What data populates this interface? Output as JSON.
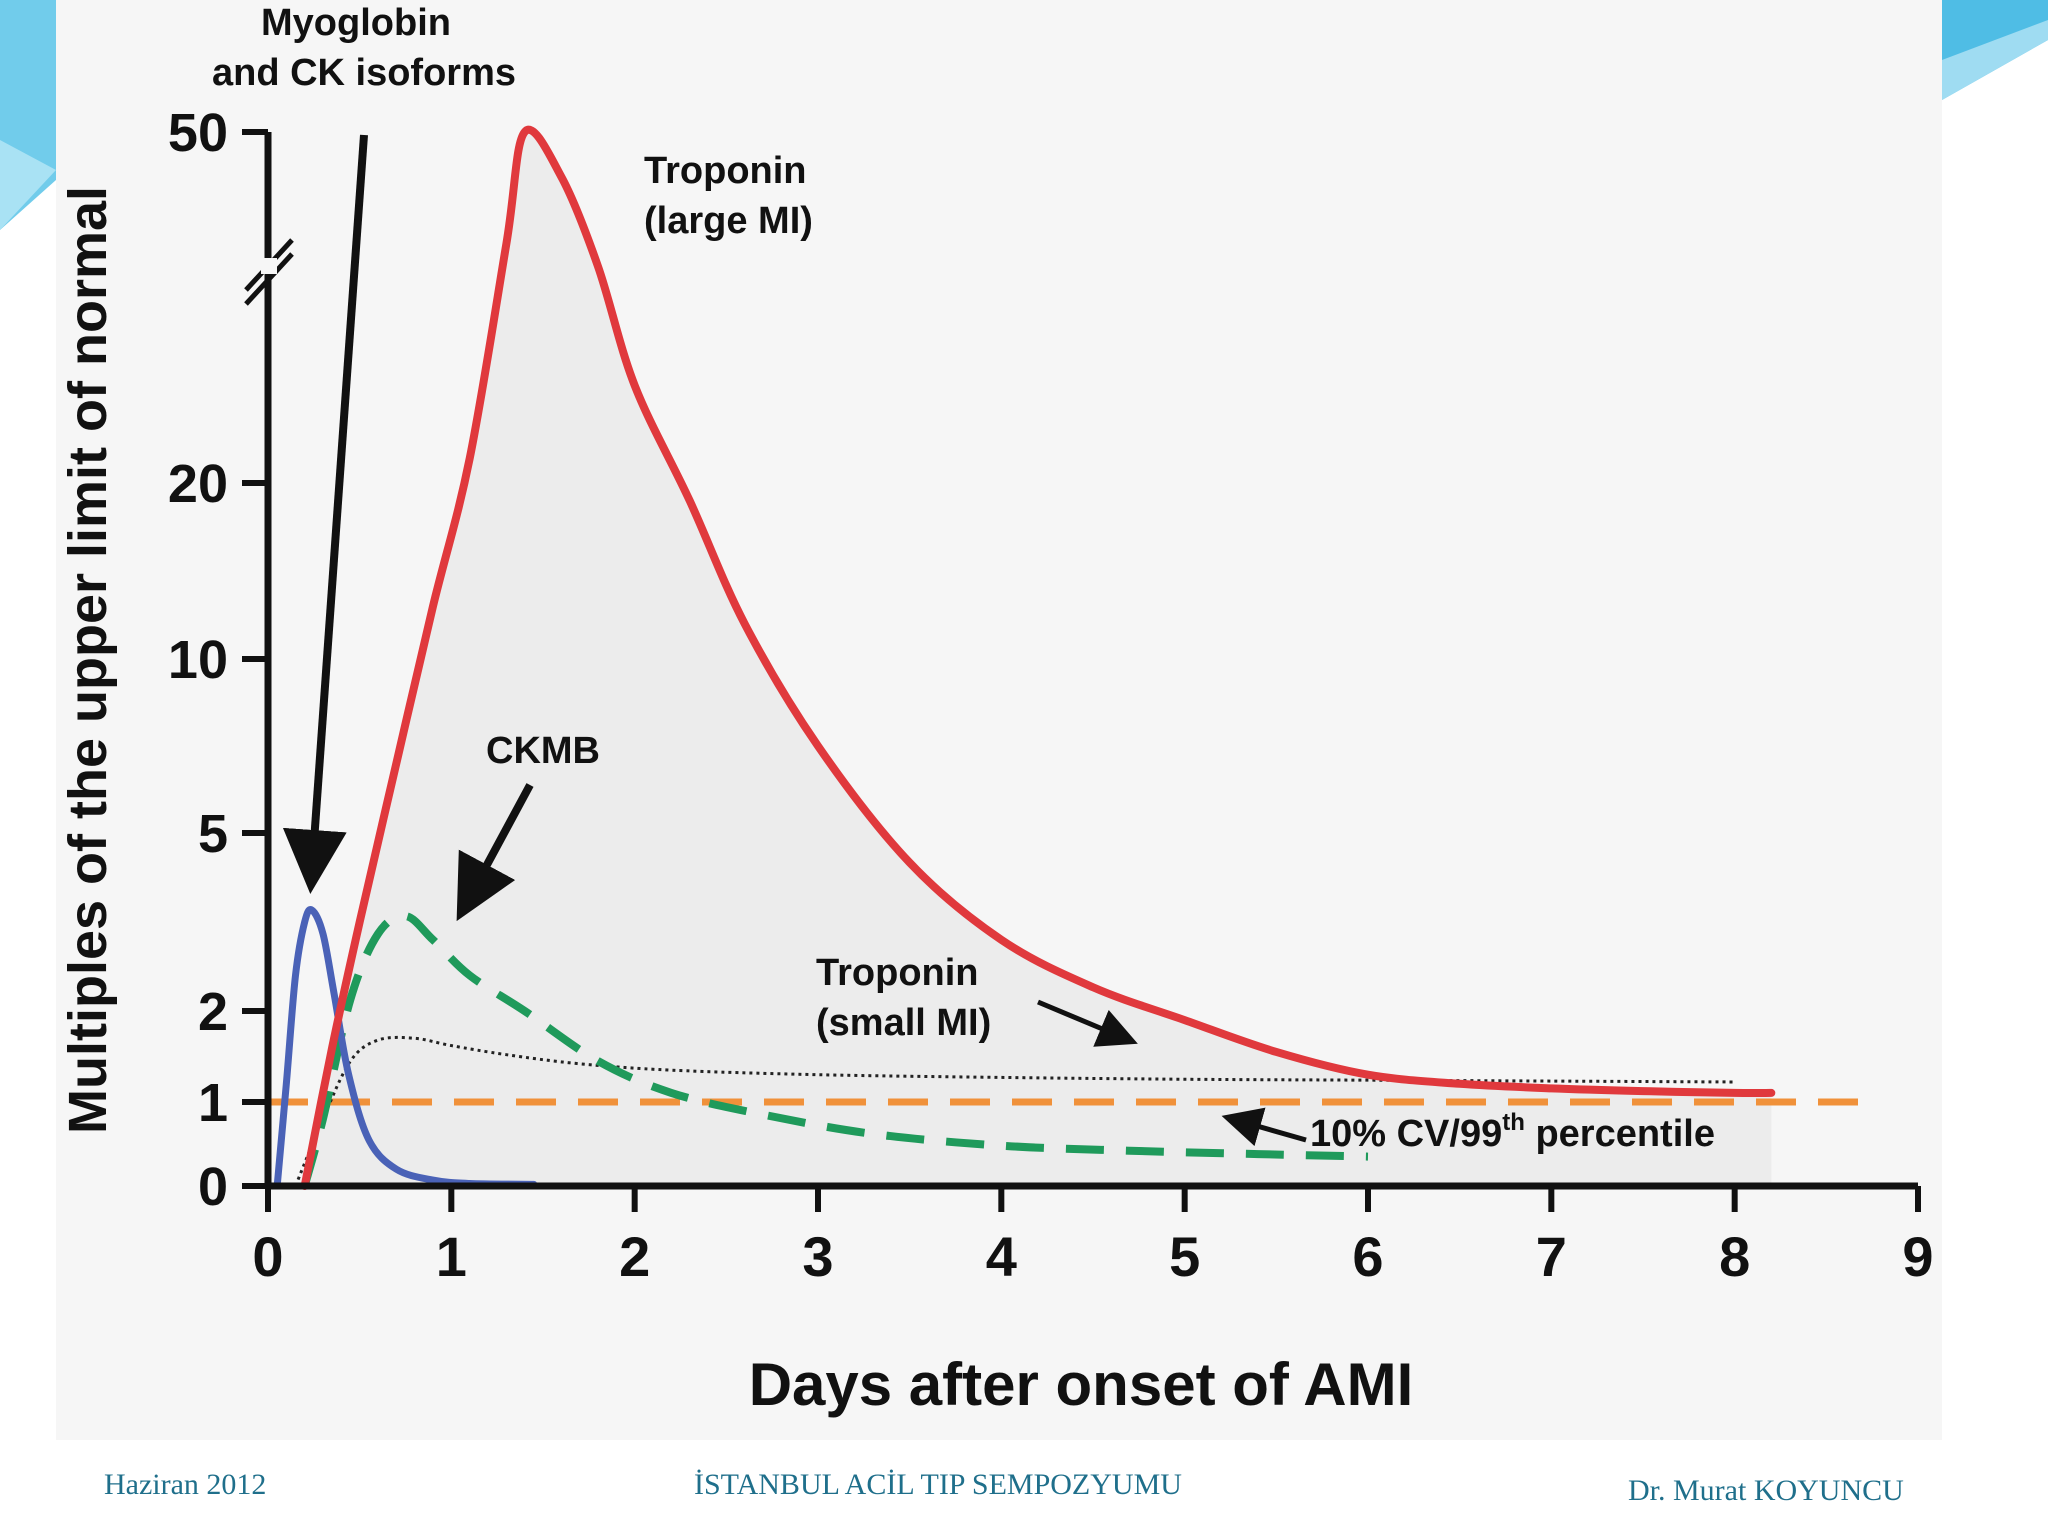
{
  "footer": {
    "left": "Haziran 2012",
    "center": "İSTANBUL ACİL TIP SEMPOZYUMU",
    "right": "Dr. Murat KOYUNCU"
  },
  "colors": {
    "troponin_large": "#e0393d",
    "ckmb": "#1f9a5b",
    "myoglobin": "#4a62b7",
    "troponin_small": "#222222",
    "threshold": "#f0913a",
    "axis": "#111111",
    "footer": "#1f6f8b",
    "accent": "#3fb7e0"
  },
  "chart_data": {
    "type": "line",
    "title": "",
    "xlabel": "Days after onset of AMI",
    "ylabel": "Multiples of the upper limit of normal",
    "xlim": [
      0,
      9
    ],
    "x_ticks": [
      "0",
      "1",
      "2",
      "3",
      "4",
      "5",
      "6",
      "7",
      "8",
      "9"
    ],
    "y_ticks": [
      "0",
      "1",
      "2",
      "5",
      "10",
      "20",
      "50"
    ],
    "y_scale": "broken log-like (axis break between 20 and 50)",
    "series": [
      {
        "name": "Troponin (large MI)",
        "style": "solid",
        "x": [
          0.2,
          0.35,
          0.5,
          0.7,
          0.9,
          1.1,
          1.3,
          1.4,
          1.6,
          1.8,
          2.0,
          2.3,
          2.6,
          3.0,
          3.5,
          4.0,
          4.5,
          5.0,
          5.5,
          6.0,
          6.5,
          7.0,
          7.5,
          8.0,
          8.2
        ],
        "y": [
          0,
          1.6,
          3.5,
          7,
          13,
          22,
          40,
          50,
          46,
          38,
          28,
          19,
          12,
          7.5,
          4.5,
          3.2,
          2.4,
          1.9,
          1.55,
          1.3,
          1.2,
          1.15,
          1.12,
          1.1,
          1.1
        ]
      },
      {
        "name": "CKMB",
        "style": "dashed",
        "x": [
          0.2,
          0.3,
          0.45,
          0.6,
          0.75,
          0.9,
          1.1,
          1.4,
          1.8,
          2.2,
          2.7,
          3.3,
          4.0,
          4.7,
          5.4,
          6.0
        ],
        "y": [
          0,
          0.8,
          2.2,
          3.3,
          3.6,
          3.2,
          2.6,
          2.0,
          1.45,
          1.1,
          0.85,
          0.62,
          0.48,
          0.42,
          0.38,
          0.35
        ]
      },
      {
        "name": "Myoglobin and CK isoforms",
        "style": "solid",
        "x": [
          0.05,
          0.1,
          0.15,
          0.2,
          0.24,
          0.3,
          0.36,
          0.44,
          0.55,
          0.7,
          0.9,
          1.1,
          1.45
        ],
        "y": [
          0,
          1.2,
          2.6,
          3.5,
          3.7,
          3.3,
          2.3,
          1.3,
          0.55,
          0.2,
          0.07,
          0.03,
          0.02
        ]
      },
      {
        "name": "Troponin (small MI)",
        "style": "dotted",
        "x": [
          0.15,
          0.3,
          0.45,
          0.6,
          0.8,
          1.0,
          1.3,
          1.7,
          2.2,
          3.0,
          4.0,
          5.0,
          6.0,
          7.0,
          8.0
        ],
        "y": [
          0,
          0.8,
          1.45,
          1.68,
          1.7,
          1.62,
          1.52,
          1.42,
          1.35,
          1.3,
          1.27,
          1.25,
          1.24,
          1.23,
          1.22
        ]
      },
      {
        "name": "10% CV/99th percentile",
        "style": "dashed",
        "x": [
          0,
          8.7
        ],
        "y": [
          1,
          1
        ]
      }
    ],
    "annotations": [
      {
        "text_lines": [
          "Myoglobin",
          "and CK isoforms"
        ],
        "target": "Myoglobin peak"
      },
      {
        "text_lines": [
          "Troponin",
          "(large MI)"
        ],
        "target": "Troponin large MI curve"
      },
      {
        "text_lines": [
          "CKMB"
        ],
        "target": "CKMB peak"
      },
      {
        "text_lines": [
          "Troponin",
          "(small MI)"
        ],
        "target": "Troponin small MI curve"
      },
      {
        "text_main": "10% CV/99",
        "text_sup": "th",
        "text_tail": " percentile",
        "target": "threshold line"
      }
    ]
  }
}
